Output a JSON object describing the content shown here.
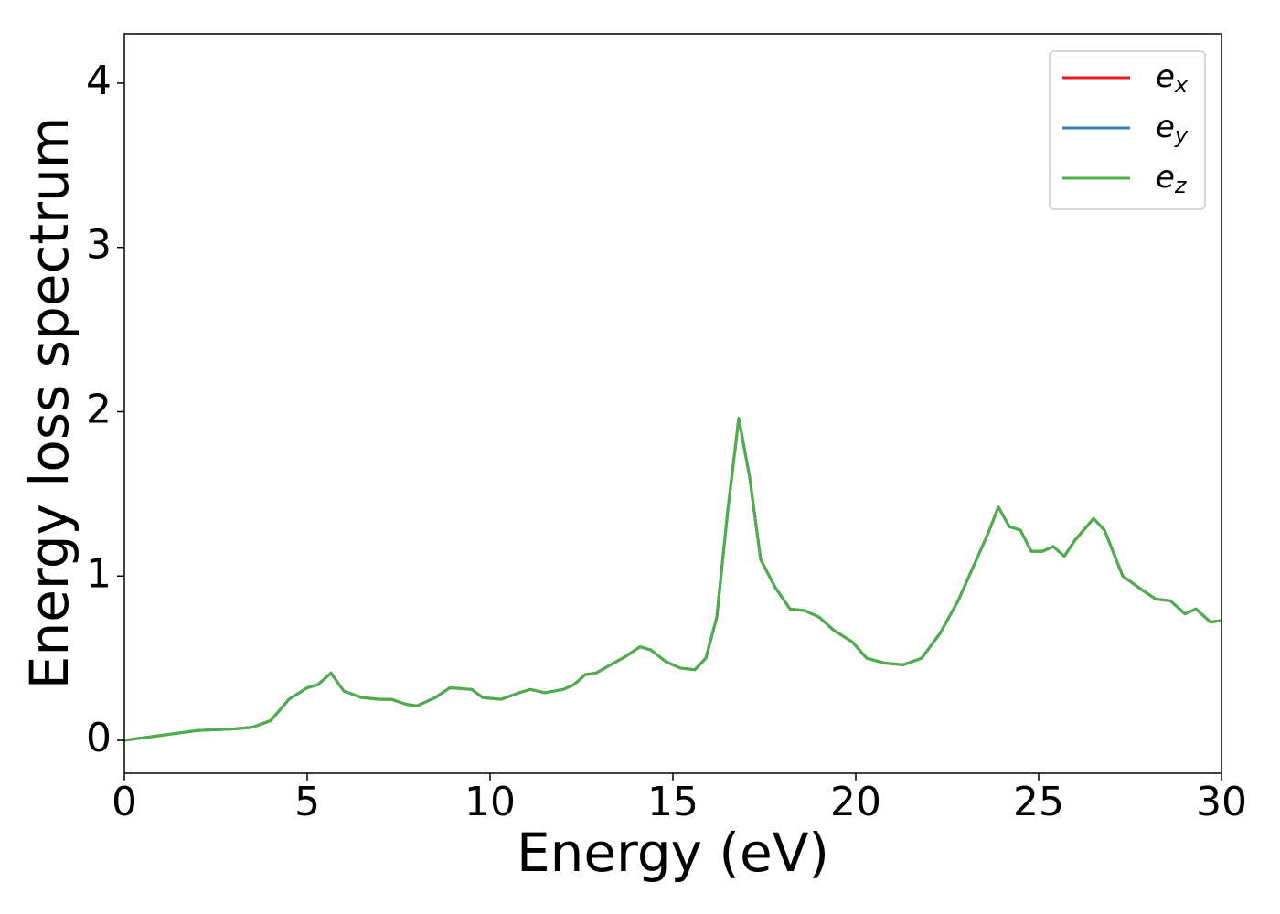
{
  "chart_data": {
    "type": "line",
    "xlabel": "Energy (eV)",
    "ylabel": "Energy loss spectrum",
    "x": [
      0,
      1,
      2,
      3,
      3.5,
      4,
      4.5,
      5,
      5.3,
      5.65,
      6,
      6.5,
      7,
      7.3,
      7.7,
      8,
      8.5,
      8.9,
      9.5,
      9.8,
      10.3,
      10.8,
      11.1,
      11.5,
      12,
      12.3,
      12.6,
      12.9,
      13.3,
      13.7,
      14.1,
      14.4,
      14.8,
      15.2,
      15.6,
      15.9,
      16.2,
      16.5,
      16.8,
      17.1,
      17.4,
      17.8,
      18.2,
      18.6,
      19,
      19.4,
      19.9,
      20.3,
      20.8,
      21.3,
      21.8,
      22.3,
      22.8,
      23.2,
      23.6,
      23.9,
      24.2,
      24.5,
      24.8,
      25.1,
      25.4,
      25.7,
      26,
      26.5,
      26.8,
      27.3,
      27.8,
      28.2,
      28.6,
      29,
      29.3,
      29.7,
      30
    ],
    "series": [
      {
        "name": "ex",
        "color": "#e41a1c",
        "values": [
          0,
          0.03,
          0.06,
          0.07,
          0.08,
          0.12,
          0.25,
          0.32,
          0.34,
          0.41,
          0.3,
          0.26,
          0.25,
          0.25,
          0.22,
          0.21,
          0.26,
          0.32,
          0.31,
          0.26,
          0.25,
          0.29,
          0.31,
          0.29,
          0.31,
          0.34,
          0.4,
          0.41,
          0.46,
          0.51,
          0.57,
          0.55,
          0.48,
          0.44,
          0.43,
          0.5,
          0.75,
          1.4,
          1.96,
          1.6,
          1.1,
          0.93,
          0.8,
          0.79,
          0.75,
          0.67,
          0.6,
          0.5,
          0.47,
          0.46,
          0.5,
          0.65,
          0.85,
          1.05,
          1.25,
          1.42,
          1.3,
          1.28,
          1.15,
          1.15,
          1.18,
          1.12,
          1.22,
          1.35,
          1.28,
          1.0,
          0.92,
          0.86,
          0.85,
          0.77,
          0.8,
          0.72,
          0.73
        ]
      },
      {
        "name": "ey",
        "color": "#377eb8",
        "values": [
          0,
          0.03,
          0.06,
          0.07,
          0.08,
          0.12,
          0.25,
          0.32,
          0.34,
          0.41,
          0.3,
          0.26,
          0.25,
          0.25,
          0.22,
          0.21,
          0.26,
          0.32,
          0.31,
          0.26,
          0.25,
          0.29,
          0.31,
          0.29,
          0.31,
          0.34,
          0.4,
          0.41,
          0.46,
          0.51,
          0.57,
          0.55,
          0.48,
          0.44,
          0.43,
          0.5,
          0.75,
          1.4,
          1.96,
          1.6,
          1.1,
          0.93,
          0.8,
          0.79,
          0.75,
          0.67,
          0.6,
          0.5,
          0.47,
          0.46,
          0.5,
          0.65,
          0.85,
          1.05,
          1.25,
          1.42,
          1.3,
          1.28,
          1.15,
          1.15,
          1.18,
          1.12,
          1.22,
          1.35,
          1.28,
          1.0,
          0.92,
          0.86,
          0.85,
          0.77,
          0.8,
          0.72,
          0.73
        ]
      },
      {
        "name": "ez",
        "color": "#4daf4a",
        "values": [
          0,
          0.03,
          0.06,
          0.07,
          0.08,
          0.12,
          0.25,
          0.32,
          0.34,
          0.41,
          0.3,
          0.26,
          0.25,
          0.25,
          0.22,
          0.21,
          0.26,
          0.32,
          0.31,
          0.26,
          0.25,
          0.29,
          0.31,
          0.29,
          0.31,
          0.34,
          0.4,
          0.41,
          0.46,
          0.51,
          0.57,
          0.55,
          0.48,
          0.44,
          0.43,
          0.5,
          0.75,
          1.4,
          1.96,
          1.6,
          1.1,
          0.93,
          0.8,
          0.79,
          0.75,
          0.67,
          0.6,
          0.5,
          0.47,
          0.46,
          0.5,
          0.65,
          0.85,
          1.05,
          1.25,
          1.42,
          1.3,
          1.28,
          1.15,
          1.15,
          1.18,
          1.12,
          1.22,
          1.35,
          1.28,
          1.0,
          0.92,
          0.86,
          0.85,
          0.77,
          0.8,
          0.72,
          0.73
        ]
      }
    ],
    "xlim": [
      0,
      30
    ],
    "xticks": [
      0,
      5,
      10,
      15,
      20,
      25,
      30
    ],
    "ylim": [
      -0.2,
      4.3
    ],
    "yticks": [
      0,
      1,
      2,
      3,
      4
    ],
    "legend": "upper right",
    "grid": false
  }
}
